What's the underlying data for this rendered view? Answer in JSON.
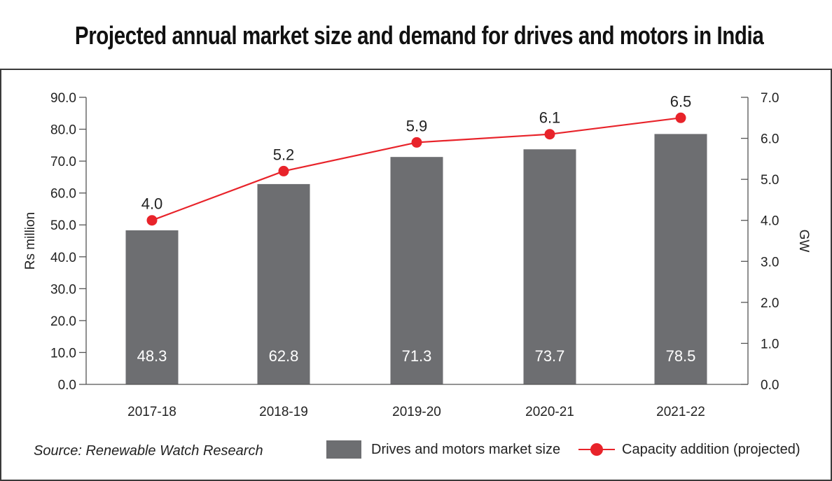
{
  "title": "Projected annual market size and demand for drives and motors in India",
  "source": "Source: Renewable Watch Research",
  "colors": {
    "bar": "#6d6e71",
    "line": "#e8232a",
    "axis": "#555555",
    "text": "#222222"
  },
  "chart_data": {
    "type": "bar",
    "categories": [
      "2017-18",
      "2018-19",
      "2019-20",
      "2020-21",
      "2021-22"
    ],
    "series": [
      {
        "name": "Drives and motors market size",
        "type": "bar",
        "axis": "left",
        "values": [
          48.3,
          62.8,
          71.3,
          73.7,
          78.5
        ],
        "value_labels": [
          "48.3",
          "62.8",
          "71.3",
          "73.7",
          "78.5"
        ]
      },
      {
        "name": "Capacity addition (projected)",
        "type": "line",
        "axis": "right",
        "values": [
          4.0,
          5.2,
          5.9,
          6.1,
          6.5
        ],
        "value_labels": [
          "4.0",
          "5.2",
          "5.9",
          "6.1",
          "6.5"
        ]
      }
    ],
    "ylabel": "Rs million",
    "y2label": "GW",
    "ylim": [
      0,
      90
    ],
    "y2lim": [
      0,
      7
    ],
    "yticks": [
      "0.0",
      "10.0",
      "20.0",
      "30.0",
      "40.0",
      "50.0",
      "60.0",
      "70.0",
      "80.0",
      "90.0"
    ],
    "y2ticks": [
      "0.0",
      "1.0",
      "2.0",
      "3.0",
      "4.0",
      "5.0",
      "6.0",
      "7.0"
    ],
    "grid": false,
    "legend_position": "bottom"
  }
}
